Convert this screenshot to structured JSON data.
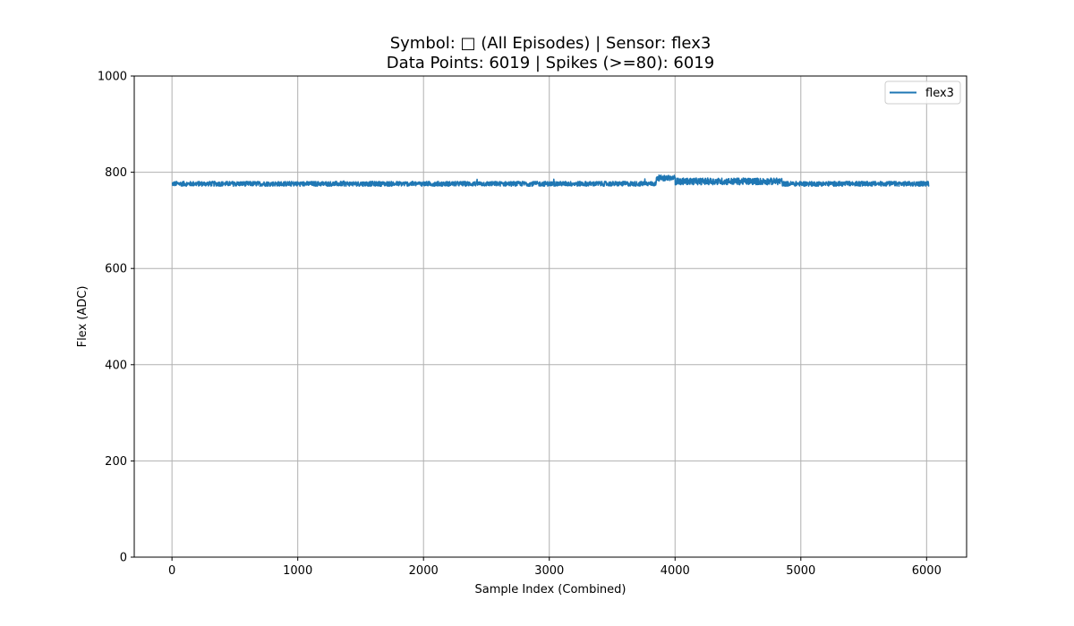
{
  "chart_data": {
    "type": "line",
    "title_lines": [
      "Symbol: □ (All Episodes) | Sensor: flex3",
      "Data Points: 6019 | Spikes (>=80): 6019"
    ],
    "xlabel": "Sample Index (Combined)",
    "ylabel": "Flex (ADC)",
    "xlim": [
      -300,
      6318
    ],
    "ylim": [
      0,
      1000
    ],
    "xticks": [
      0,
      1000,
      2000,
      3000,
      4000,
      5000,
      6000
    ],
    "yticks": [
      0,
      200,
      400,
      600,
      800,
      1000
    ],
    "grid": true,
    "legend_position": "top-right",
    "series": [
      {
        "name": "flex3",
        "color": "#1f77b4",
        "length": 6019,
        "baseline_segments": [
          {
            "start": 0,
            "end": 3850,
            "mean": 776,
            "noise": 5
          },
          {
            "start": 3850,
            "end": 4000,
            "mean": 788,
            "noise": 6
          },
          {
            "start": 4000,
            "end": 4850,
            "mean": 781,
            "noise": 7
          },
          {
            "start": 4850,
            "end": 6018,
            "mean": 776,
            "noise": 5
          }
        ],
        "value_range": [
          765,
          797
        ]
      }
    ]
  }
}
